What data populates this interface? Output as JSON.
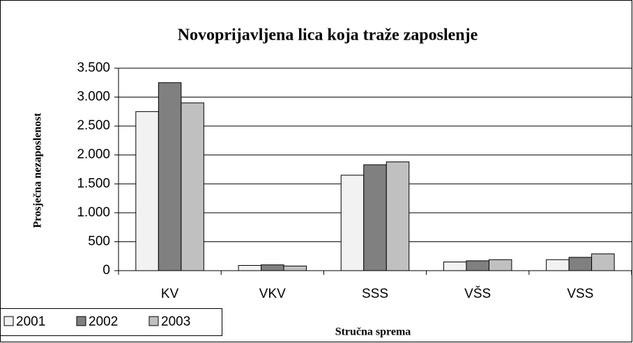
{
  "chart_data": {
    "type": "bar",
    "title": "Novoprijavljena lica koja traže zaposlenje",
    "x_label": "Stručna sprema",
    "y_label": "Prosječna nezaposlenost",
    "categories": [
      "KV",
      "VKV",
      "SSS",
      "VŠS",
      "VSS"
    ],
    "series": [
      {
        "name": "2001",
        "color": "#f2f2f2",
        "values": [
          2750,
          90,
          1650,
          150,
          190
        ]
      },
      {
        "name": "2002",
        "color": "#808080",
        "values": [
          3250,
          100,
          1830,
          170,
          230
        ]
      },
      {
        "name": "2003",
        "color": "#c0c0c0",
        "values": [
          2900,
          80,
          1880,
          190,
          290
        ]
      }
    ],
    "ylim": [
      0,
      3500
    ],
    "yticks": [
      0,
      500,
      {
        "value": 1000,
        "label": "1.000"
      },
      {
        "value": 1500,
        "label": "1.500"
      },
      {
        "value": 2000,
        "label": "2.000"
      },
      {
        "value": 2500,
        "label": "2.500"
      },
      {
        "value": 3000,
        "label": "3.000"
      },
      {
        "value": 3500,
        "label": "3.500"
      }
    ],
    "grid": true,
    "legend": "bottom-left"
  }
}
